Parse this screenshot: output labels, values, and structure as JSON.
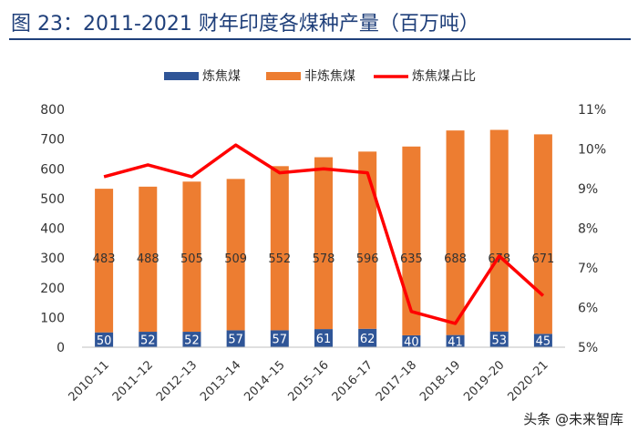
{
  "title": "图 23：2011-2021 财年印度各煤种产量（百万吨）",
  "watermark": "头条 @未来智库",
  "colors": {
    "coking": "#2f5597",
    "non_coking": "#ed7d31",
    "share_line": "#ff0000",
    "title": "#1f3f7a"
  },
  "chart_data": {
    "type": "bar",
    "stacked": true,
    "categories": [
      "2010–11",
      "2011–12",
      "2012–13",
      "2013–14",
      "2014–15",
      "2015–16",
      "2016–17",
      "2017–18",
      "2018–19",
      "2019–20",
      "2020–21"
    ],
    "series": [
      {
        "name": "炼焦煤",
        "type": "bar",
        "axis": "left",
        "values": [
          50,
          52,
          52,
          57,
          57,
          61,
          62,
          40,
          41,
          53,
          45
        ]
      },
      {
        "name": "非炼焦煤",
        "type": "bar",
        "axis": "left",
        "values": [
          483,
          488,
          505,
          509,
          552,
          578,
          596,
          635,
          688,
          678,
          671
        ]
      },
      {
        "name": "炼焦煤占比",
        "type": "line",
        "axis": "right",
        "values": [
          9.3,
          9.6,
          9.3,
          10.1,
          9.4,
          9.5,
          9.4,
          5.9,
          5.6,
          7.3,
          6.3
        ]
      }
    ],
    "y_left": {
      "min": 0,
      "max": 800,
      "ticks": [
        "0",
        "100",
        "200",
        "300",
        "400",
        "500",
        "600",
        "700",
        "800"
      ]
    },
    "y_right": {
      "min": 5,
      "max": 11,
      "ticks": [
        "5%",
        "6%",
        "7%",
        "8%",
        "9%",
        "10%",
        "11%"
      ]
    },
    "legend_position": "top-center",
    "grid": false
  }
}
